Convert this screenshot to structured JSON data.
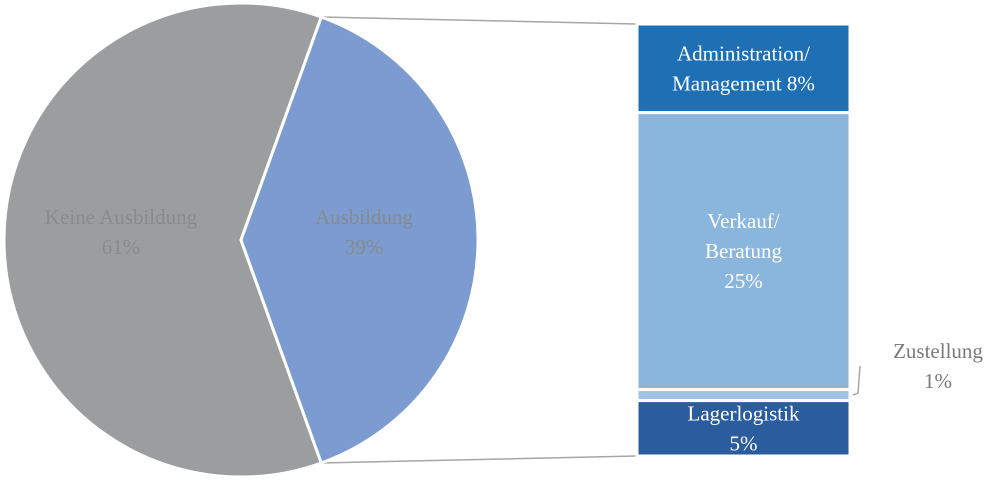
{
  "chart_data": {
    "type": "bar-of-pie",
    "pie": {
      "slices": [
        {
          "name": "Keine Ausbildung",
          "value": 61,
          "label": "61%",
          "color": "#9b9d9f"
        },
        {
          "name": "Ausbildung",
          "value": 39,
          "label": "39%",
          "color": "#7b9bd1"
        }
      ]
    },
    "bar": {
      "segments": [
        {
          "name_lines": [
            "Administration/",
            "Management 8%"
          ],
          "value": 8,
          "color": "#1f6fb4",
          "label_color": "#ffffff"
        },
        {
          "name_lines": [
            "Verkauf/",
            "Beratung",
            "25%"
          ],
          "value": 25,
          "color": "#8ab6de",
          "label_color": "#ffffff"
        },
        {
          "name_lines": [
            "Zustellung",
            "1%"
          ],
          "value": 1,
          "color": "#9fc3e6",
          "label_color": "#7a7a7a",
          "label_outside": true
        },
        {
          "name_lines": [
            "Lagerlogistik",
            "5%"
          ],
          "value": 5,
          "color": "#2a5c9e",
          "label_color": "#ffffff"
        }
      ]
    },
    "connector_color": "#a6a6a6"
  }
}
